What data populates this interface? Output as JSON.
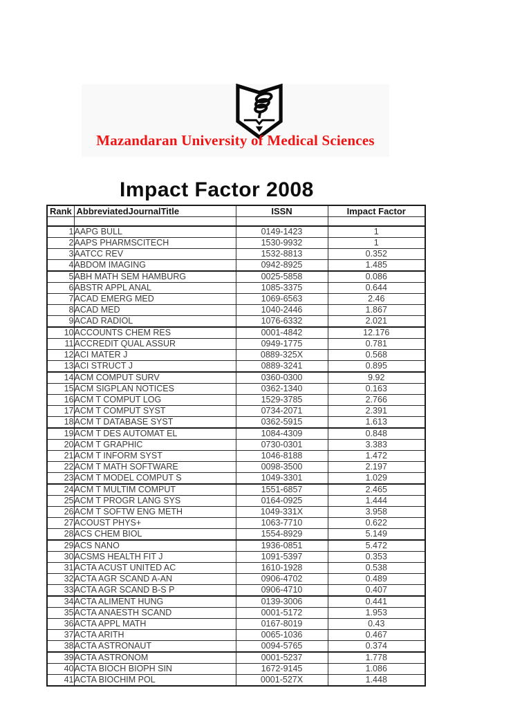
{
  "header": {
    "university_name": "Mazandaran University of Medical Sciences",
    "logo": "mazandaran-university-emblem"
  },
  "title": "Impact Factor 2008",
  "colors": {
    "accent_red": "#ee1414",
    "table_border": "#1b1b1b",
    "cell_text": "#3c3c3c"
  },
  "table": {
    "columns": [
      "Rank",
      "AbbreviatedJournalTitle",
      "ISSN",
      "Impact Factor"
    ],
    "rows": [
      [
        "1",
        "AAPG BULL",
        "0149-1423",
        "1"
      ],
      [
        "2",
        "AAPS PHARMSCITECH",
        "1530-9932",
        "1"
      ],
      [
        "3",
        "AATCC REV",
        "1532-8813",
        "0.352"
      ],
      [
        "4",
        "ABDOM IMAGING",
        "0942-8925",
        "1.485"
      ],
      [
        "5",
        "ABH MATH SEM HAMBURG",
        "0025-5858",
        "0.086"
      ],
      [
        "6",
        "ABSTR APPL ANAL",
        "1085-3375",
        "0.644"
      ],
      [
        "7",
        "ACAD EMERG MED",
        "1069-6563",
        "2.46"
      ],
      [
        "8",
        "ACAD MED",
        "1040-2446",
        "1.867"
      ],
      [
        "9",
        "ACAD RADIOL",
        "1076-6332",
        "2.021"
      ],
      [
        "10",
        "ACCOUNTS CHEM RES",
        "0001-4842",
        "12.176"
      ],
      [
        "11",
        "ACCREDIT QUAL ASSUR",
        "0949-1775",
        "0.781"
      ],
      [
        "12",
        "ACI MATER J",
        "0889-325X",
        "0.568"
      ],
      [
        "13",
        "ACI STRUCT J",
        "0889-3241",
        "0.895"
      ],
      [
        "14",
        "ACM COMPUT SURV",
        "0360-0300",
        "9.92"
      ],
      [
        "15",
        "ACM SIGPLAN NOTICES",
        "0362-1340",
        "0.163"
      ],
      [
        "16",
        "ACM T COMPUT LOG",
        "1529-3785",
        "2.766"
      ],
      [
        "17",
        "ACM T COMPUT SYST",
        "0734-2071",
        "2.391"
      ],
      [
        "18",
        "ACM T DATABASE SYST",
        "0362-5915",
        "1.613"
      ],
      [
        "19",
        "ACM T DES AUTOMAT EL",
        "1084-4309",
        "0.848"
      ],
      [
        "20",
        "ACM T GRAPHIC",
        "0730-0301",
        "3.383"
      ],
      [
        "21",
        "ACM T INFORM SYST",
        "1046-8188",
        "1.472"
      ],
      [
        "22",
        "ACM T MATH SOFTWARE",
        "0098-3500",
        "2.197"
      ],
      [
        "23",
        "ACM T MODEL COMPUT S",
        "1049-3301",
        "1.029"
      ],
      [
        "24",
        "ACM T MULTIM COMPUT",
        "1551-6857",
        "2.465"
      ],
      [
        "25",
        "ACM T PROGR LANG SYS",
        "0164-0925",
        "1.444"
      ],
      [
        "26",
        "ACM T SOFTW ENG METH",
        "1049-331X",
        "3.958"
      ],
      [
        "27",
        "ACOUST PHYS+",
        "1063-7710",
        "0.622"
      ],
      [
        "28",
        "ACS CHEM BIOL",
        "1554-8929",
        "5.149"
      ],
      [
        "29",
        "ACS NANO",
        "1936-0851",
        "5.472"
      ],
      [
        "30",
        "ACSMS HEALTH FIT J",
        "1091-5397",
        "0.353"
      ],
      [
        "31",
        "ACTA ACUST UNITED AC",
        "1610-1928",
        "0.538"
      ],
      [
        "32",
        "ACTA AGR SCAND A-AN",
        "0906-4702",
        "0.489"
      ],
      [
        "33",
        "ACTA AGR SCAND B-S P",
        "0906-4710",
        "0.407"
      ],
      [
        "34",
        "ACTA ALIMENT HUNG",
        "0139-3006",
        "0.441"
      ],
      [
        "35",
        "ACTA ANAESTH SCAND",
        "0001-5172",
        "1.953"
      ],
      [
        "36",
        "ACTA APPL MATH",
        "0167-8019",
        "0.43"
      ],
      [
        "37",
        "ACTA ARITH",
        "0065-1036",
        "0.467"
      ],
      [
        "38",
        "ACTA ASTRONAUT",
        "0094-5765",
        "0.374"
      ],
      [
        "39",
        "ACTA ASTRONOM",
        "0001-5237",
        "1.778"
      ],
      [
        "40",
        "ACTA BIOCH BIOPH SIN",
        "1672-9145",
        "1.086"
      ],
      [
        "41",
        "ACTA BIOCHIM POL",
        "0001-527X",
        "1.448"
      ]
    ]
  }
}
